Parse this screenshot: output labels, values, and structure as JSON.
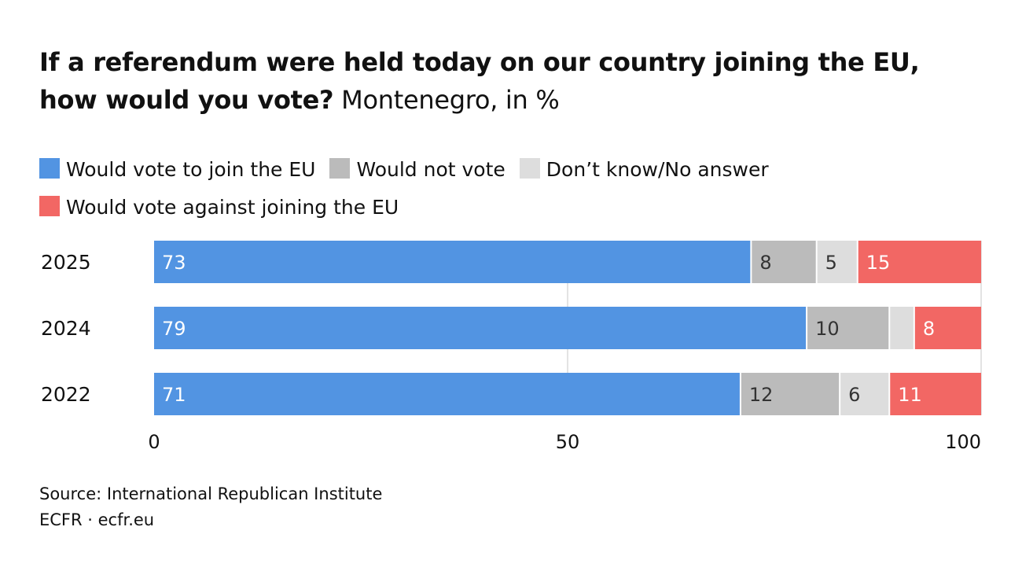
{
  "title_bold": "If a referendum were held today on our country joining the EU, how would you vote?",
  "title_rest": "Montenegro, in %",
  "chart_data": {
    "type": "bar",
    "orientation": "horizontal",
    "stacked": true,
    "categories": [
      "2025",
      "2024",
      "2022"
    ],
    "series": [
      {
        "name": "Would vote to join the EU",
        "color": "#5294E2",
        "label_color": "#ffffff",
        "values": [
          73,
          79,
          71
        ],
        "labels": [
          "73",
          "79",
          "71"
        ]
      },
      {
        "name": "Would not vote",
        "color": "#BBBBBB",
        "label_color": "#333333",
        "values": [
          8,
          10,
          12
        ],
        "labels": [
          "8",
          "10",
          "12"
        ]
      },
      {
        "name": "Don’t know/No answer",
        "color": "#DDDDDD",
        "label_color": "#333333",
        "values": [
          5,
          3,
          6
        ],
        "labels": [
          "5",
          "",
          "6"
        ]
      },
      {
        "name": "Would vote against joining the EU",
        "color": "#F26764",
        "label_color": "#ffffff",
        "values": [
          15,
          8,
          11
        ],
        "labels": [
          "15",
          "8",
          "11"
        ]
      }
    ],
    "xlim": [
      0,
      100
    ],
    "xticks": [
      "0",
      "50",
      "100"
    ],
    "grid": true,
    "legend": "top"
  },
  "source": "Source: International Republican Institute",
  "credit": "ECFR · ecfr.eu"
}
